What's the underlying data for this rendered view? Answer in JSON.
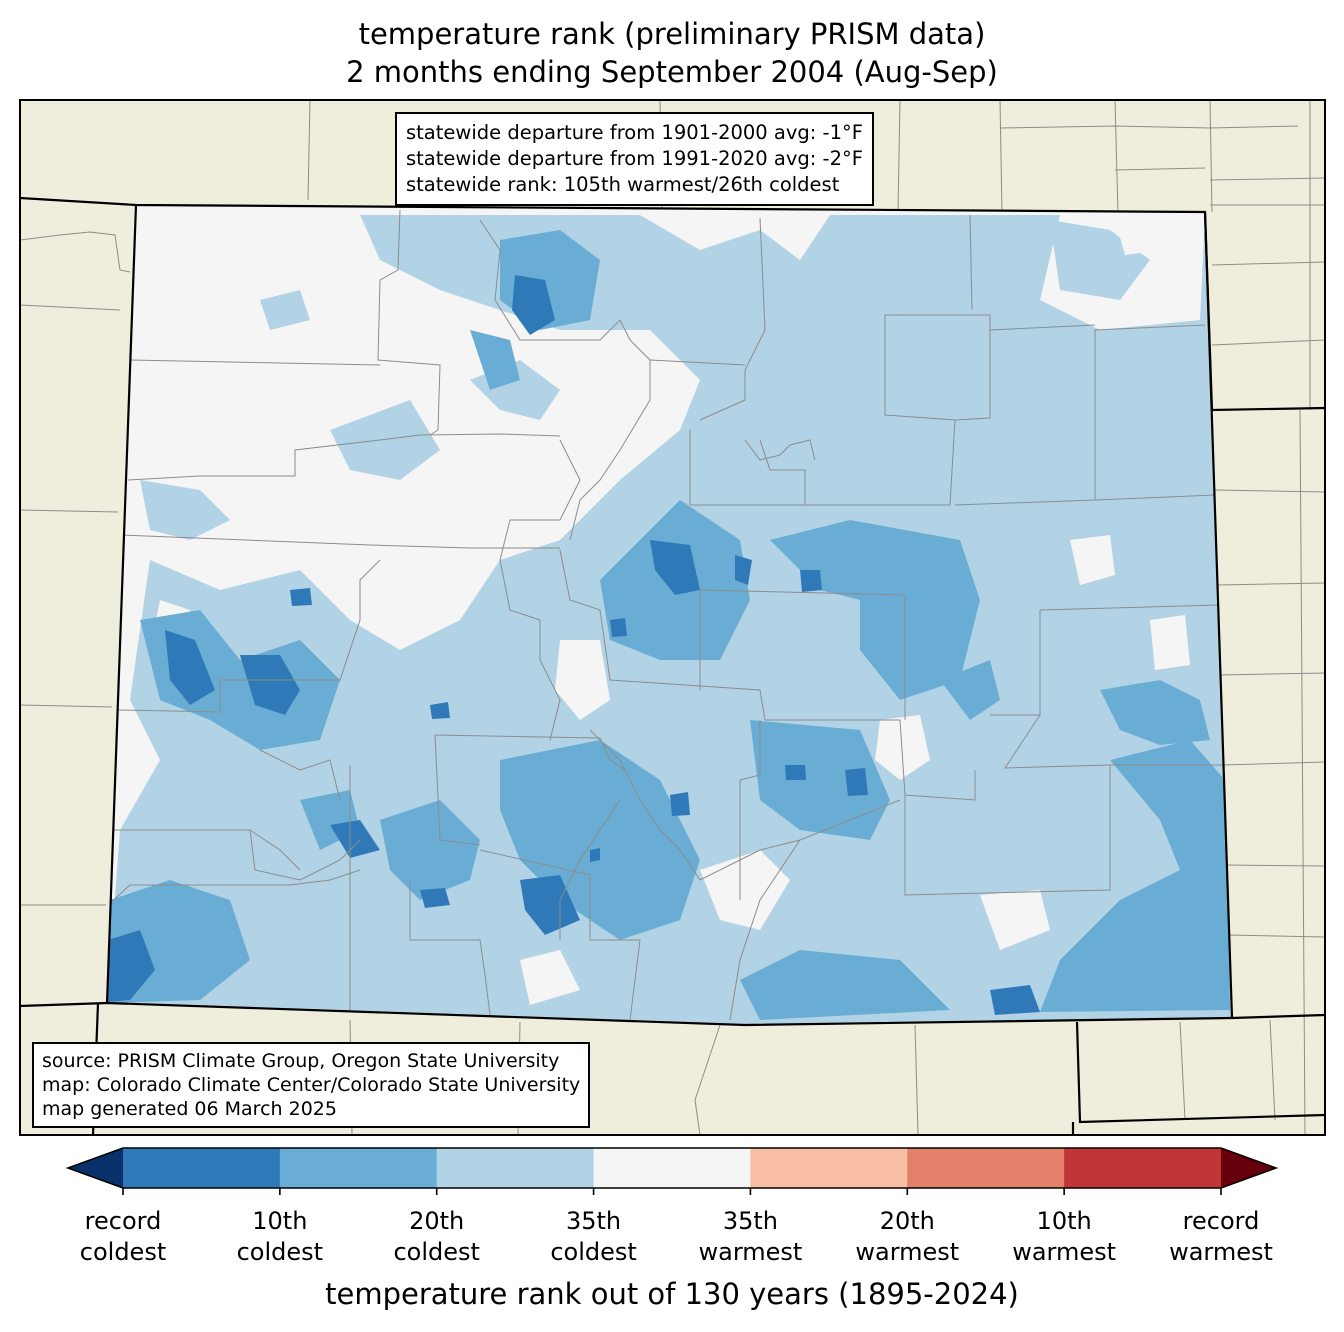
{
  "title": {
    "line1": "temperature rank (preliminary PRISM data)",
    "line2": "2 months ending September 2004 (Aug-Sep)"
  },
  "stats": {
    "line1": "statewide departure from 1901-2000 avg: -1°F",
    "line2": "statewide departure from 1991-2020 avg: -2°F",
    "line3": "statewide rank: 105th warmest/26th coldest"
  },
  "source": {
    "line1": "source: PRISM Climate Group, Oregon State University",
    "line2": "map: Colorado Climate Center/Colorado State University",
    "line3": "map generated 06 March 2025"
  },
  "colorbar": {
    "title": "temperature rank out of 130 years (1895-2024)",
    "under_color": "#08306b",
    "over_color": "#67000d",
    "bins": [
      {
        "color": "#2f79b8"
      },
      {
        "color": "#6aadd4"
      },
      {
        "color": "#b2d3e6"
      },
      {
        "color": "#f5f5f5"
      },
      {
        "color": "#f8bea6"
      },
      {
        "color": "#e2806a"
      },
      {
        "color": "#c23537"
      }
    ],
    "labels": [
      {
        "line1": "record",
        "line2": "coldest"
      },
      {
        "line1": "10th",
        "line2": "coldest"
      },
      {
        "line1": "20th",
        "line2": "coldest"
      },
      {
        "line1": "35th",
        "line2": "coldest"
      },
      {
        "line1": "35th",
        "line2": "warmest"
      },
      {
        "line1": "20th",
        "line2": "warmest"
      },
      {
        "line1": "10th",
        "line2": "warmest"
      },
      {
        "line1": "record",
        "line2": "warmest"
      }
    ]
  },
  "map": {
    "region": "Colorado",
    "background_color": "#efeedd",
    "state_fill_color": "#f5f5f5"
  }
}
